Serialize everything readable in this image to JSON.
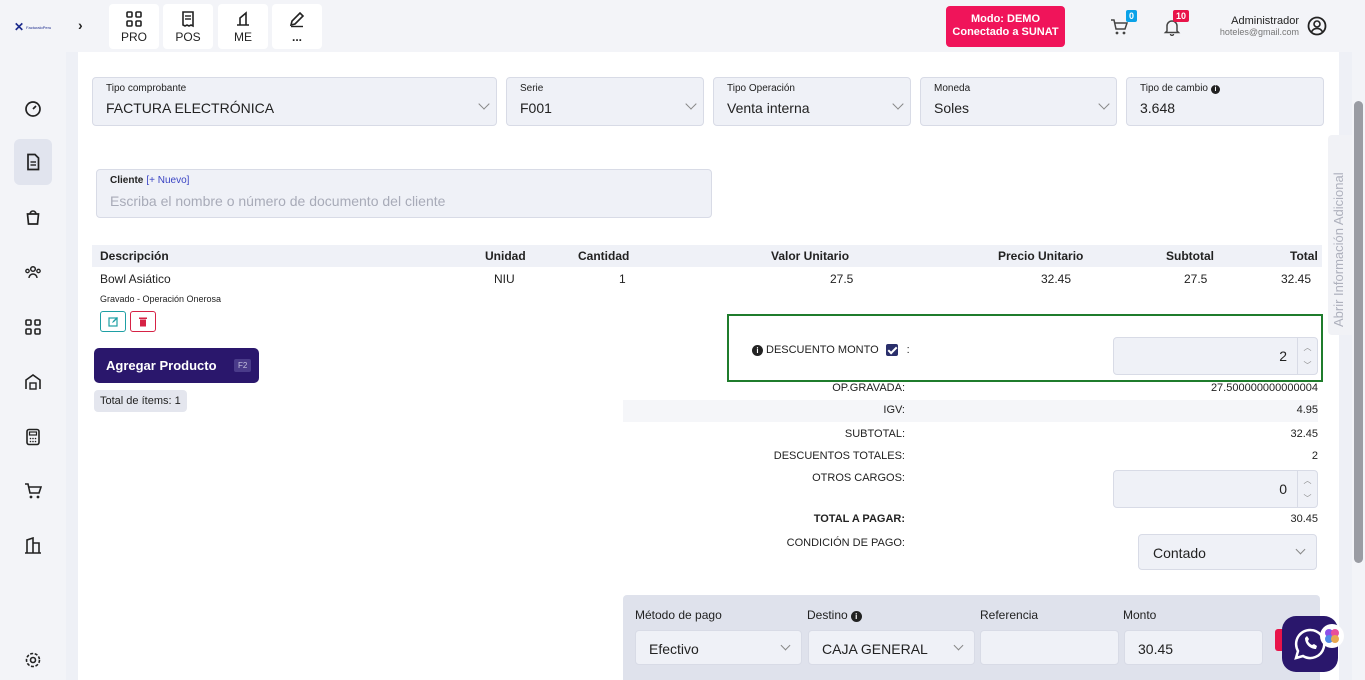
{
  "header": {
    "logo_text": "FacturaloPeru",
    "quick_buttons": [
      {
        "icon": "grid-icon",
        "label": "PRO"
      },
      {
        "icon": "receipt-icon",
        "label": "POS"
      },
      {
        "icon": "tool-icon",
        "label": "ME"
      },
      {
        "icon": "edit-icon",
        "label": "..."
      }
    ],
    "mode_line1": "Modo: DEMO",
    "mode_line2": "Conectado a SUNAT",
    "cart_count": "0",
    "notif_count": "10",
    "user_name": "Administrador",
    "user_email": "hoteles@gmail.com"
  },
  "sidebar": {
    "items": [
      "dashboard-icon",
      "document-icon",
      "shopping-bag-icon",
      "users-icon",
      "apps-icon",
      "warehouse-icon",
      "calculator-icon",
      "cart-icon",
      "building-icon",
      "settings-icon"
    ]
  },
  "form": {
    "tipo_comprobante": {
      "label": "Tipo comprobante",
      "value": "FACTURA ELECTRÓNICA"
    },
    "serie": {
      "label": "Serie",
      "value": "F001"
    },
    "tipo_operacion": {
      "label": "Tipo Operación",
      "value": "Venta interna"
    },
    "moneda": {
      "label": "Moneda",
      "value": "Soles"
    },
    "tipo_cambio": {
      "label": "Tipo de cambio",
      "value": "3.648"
    },
    "cliente": {
      "label": "Cliente",
      "new_link": "[+ Nuevo]",
      "placeholder": "Escriba el nombre o número de documento del cliente"
    }
  },
  "table": {
    "headers": [
      "Descripción",
      "Unidad",
      "Cantidad",
      "Valor Unitario",
      "Precio Unitario",
      "Subtotal",
      "Total"
    ],
    "rows": [
      {
        "descripcion": "Bowl Asiático",
        "unidad": "NIU",
        "cantidad": "1",
        "valor_unitario": "27.5",
        "precio_unitario": "32.45",
        "subtotal": "27.5",
        "total": "32.45",
        "note": "Gravado - Operación Onerosa"
      }
    ]
  },
  "actions": {
    "add_product": "Agregar Producto",
    "add_product_key": "F2",
    "total_items": "Total de ítems: 1"
  },
  "totals": {
    "descuento_label": "DESCUENTO MONTO",
    "descuento_sep": ":",
    "descuento_value": "2",
    "op_gravada_label": "OP.GRAVADA:",
    "op_gravada_value": "27.500000000000004",
    "igv_label": "IGV:",
    "igv_value": "4.95",
    "subtotal_label": "SUBTOTAL:",
    "subtotal_value": "32.45",
    "descuentos_totales_label": "DESCUENTOS TOTALES:",
    "descuentos_totales_value": "2",
    "otros_cargos_label": "OTROS CARGOS:",
    "otros_cargos_value": "0",
    "total_pagar_label": "TOTAL A PAGAR:",
    "total_pagar_value": "30.45",
    "condicion_label": "CONDICIÓN DE PAGO:",
    "condicion_value": "Contado"
  },
  "payment": {
    "headers": {
      "metodo": "Método de pago",
      "destino": "Destino",
      "referencia": "Referencia",
      "monto": "Monto"
    },
    "metodo": "Efectivo",
    "destino": "CAJA GENERAL",
    "referencia": "",
    "monto": "30.45"
  },
  "side_tab": "Abrir Información Adicional"
}
